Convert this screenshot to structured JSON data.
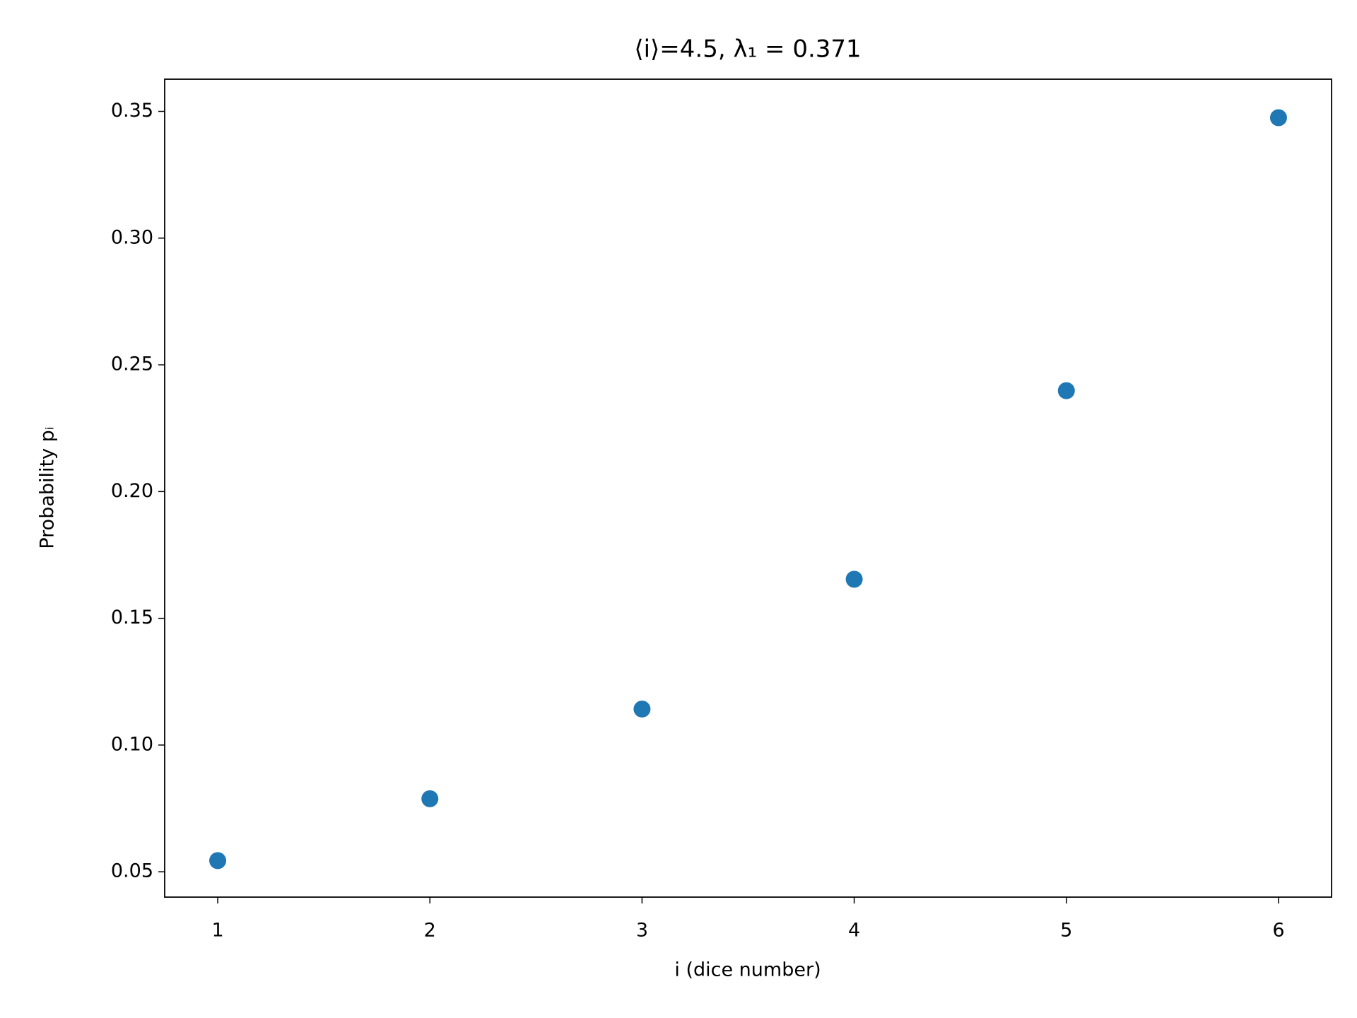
{
  "chart_data": {
    "type": "scatter",
    "title": "⟨i⟩=4.5, λ₁ = 0.371",
    "x_label": "i (dice number)",
    "y_label": "Probability pᵢ",
    "x": [
      1,
      2,
      3,
      4,
      5,
      6
    ],
    "values": [
      0.0544,
      0.0788,
      0.1142,
      0.1654,
      0.2398,
      0.3475
    ],
    "color": "#1f77b4",
    "xlim": [
      0.75,
      6.25
    ],
    "ylim": [
      0.04,
      0.3627
    ],
    "xticks": [
      1,
      2,
      3,
      4,
      5,
      6
    ],
    "yticks": [
      0.05,
      {
        "value": 0.1,
        "label": "0.10"
      },
      0.15,
      {
        "value": 0.2,
        "label": "0.20"
      },
      0.25,
      {
        "value": 0.3,
        "label": "0.30"
      },
      0.35
    ],
    "grid": false
  }
}
